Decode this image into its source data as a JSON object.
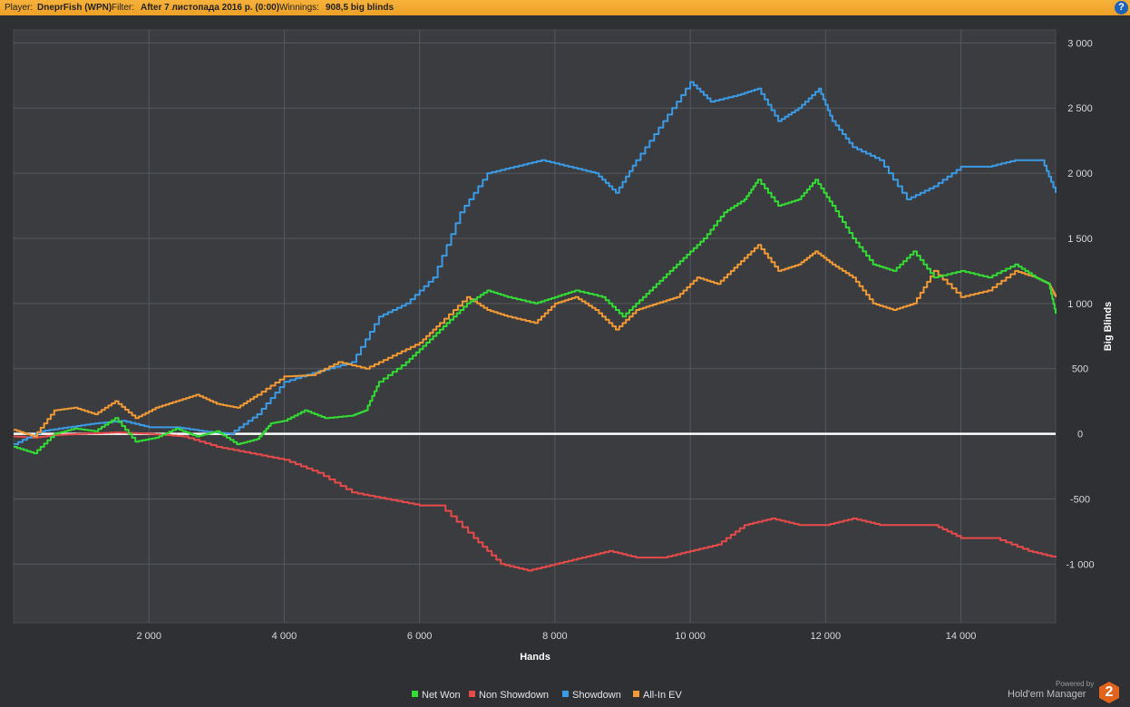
{
  "header": {
    "player_label": "Player:",
    "player_value": "DneprFish (WPN)",
    "filter_label": "Filter:",
    "filter_value": "After 7 листопада 2016 р. (0:00)",
    "winnings_label": "Winnings:",
    "winnings_value": "908,5 big blinds",
    "help_glyph": "?"
  },
  "footer": {
    "powered_by": "Powered by",
    "brand": "Hold'em Manager",
    "brand_version": "2"
  },
  "chart_data": {
    "type": "line",
    "xlabel": "Hands",
    "ylabel": "Big Blinds",
    "xlim": [
      0,
      15400
    ],
    "ylim": [
      -1450,
      3100
    ],
    "x_ticks": [
      2000,
      4000,
      6000,
      8000,
      10000,
      12000,
      14000
    ],
    "x_tick_labels": [
      "2 000",
      "4 000",
      "6 000",
      "8 000",
      "10 000",
      "12 000",
      "14 000"
    ],
    "y_ticks": [
      3000,
      2500,
      2000,
      1500,
      1000,
      500,
      0,
      -500,
      -1000
    ],
    "y_tick_labels": [
      "3 000",
      "2 500",
      "2 000",
      "1 500",
      "1 000",
      "500",
      "0",
      "-500",
      "-1 000"
    ],
    "grid": true,
    "legend_position": "bottom",
    "zero_line_color": "#ffffff",
    "series": [
      {
        "name": "Net Won",
        "color": "#33dd33",
        "x": [
          0,
          300,
          600,
          900,
          1200,
          1500,
          1800,
          2100,
          2400,
          2700,
          3000,
          3300,
          3600,
          3800,
          4000,
          4300,
          4600,
          5000,
          5200,
          5400,
          5800,
          6100,
          6400,
          6700,
          7000,
          7300,
          7700,
          8000,
          8300,
          8700,
          9000,
          9300,
          9600,
          9900,
          10200,
          10500,
          10800,
          11000,
          11300,
          11600,
          11850,
          12100,
          12400,
          12700,
          13000,
          13300,
          13600,
          14000,
          14400,
          14800,
          15100,
          15300,
          15400
        ],
        "y": [
          -100,
          -150,
          0,
          40,
          20,
          120,
          -60,
          -30,
          40,
          -20,
          20,
          -80,
          -40,
          80,
          100,
          180,
          120,
          140,
          180,
          400,
          550,
          700,
          850,
          1000,
          1100,
          1050,
          1000,
          1050,
          1100,
          1050,
          900,
          1050,
          1200,
          1350,
          1500,
          1700,
          1800,
          1950,
          1750,
          1800,
          1950,
          1750,
          1500,
          1300,
          1250,
          1400,
          1200,
          1250,
          1200,
          1300,
          1200,
          1150,
          920
        ]
      },
      {
        "name": "Non Showdown",
        "color": "#e84a4a",
        "x": [
          0,
          300,
          600,
          1000,
          1500,
          2000,
          2500,
          3000,
          3500,
          4000,
          4500,
          5000,
          5500,
          6000,
          6300,
          6800,
          7200,
          7600,
          8000,
          8400,
          8800,
          9200,
          9600,
          10000,
          10400,
          10800,
          11200,
          11600,
          12000,
          12400,
          12800,
          13200,
          13600,
          14000,
          14500,
          15000,
          15400
        ],
        "y": [
          -20,
          -30,
          -10,
          0,
          10,
          0,
          -20,
          -100,
          -150,
          -200,
          -300,
          -450,
          -500,
          -550,
          -550,
          -800,
          -1000,
          -1050,
          -1000,
          -950,
          -900,
          -950,
          -950,
          -900,
          -850,
          -700,
          -650,
          -700,
          -700,
          -650,
          -700,
          -700,
          -700,
          -800,
          -800,
          -900,
          -950
        ]
      },
      {
        "name": "Showdown",
        "color": "#3b9be6",
        "x": [
          0,
          400,
          800,
          1200,
          1600,
          2000,
          2400,
          2800,
          3200,
          3600,
          4000,
          4500,
          5000,
          5400,
          5800,
          6200,
          6600,
          7000,
          7400,
          7800,
          8200,
          8600,
          8900,
          9200,
          9600,
          10000,
          10300,
          10700,
          11000,
          11300,
          11600,
          11900,
          12100,
          12400,
          12800,
          13200,
          13600,
          14000,
          14400,
          14800,
          15200,
          15400
        ],
        "y": [
          -80,
          20,
          50,
          80,
          100,
          50,
          50,
          20,
          0,
          150,
          400,
          480,
          550,
          900,
          1000,
          1200,
          1700,
          2000,
          2050,
          2100,
          2050,
          2000,
          1850,
          2100,
          2400,
          2700,
          2550,
          2600,
          2650,
          2400,
          2500,
          2650,
          2400,
          2200,
          2100,
          1800,
          1900,
          2050,
          2050,
          2100,
          2100,
          1850
        ]
      },
      {
        "name": "All-In EV",
        "color": "#f39a34",
        "x": [
          0,
          300,
          600,
          900,
          1200,
          1500,
          1800,
          2100,
          2400,
          2700,
          3000,
          3300,
          3600,
          4000,
          4400,
          4800,
          5200,
          5600,
          6000,
          6300,
          6700,
          7000,
          7300,
          7700,
          8000,
          8300,
          8600,
          8900,
          9200,
          9500,
          9800,
          10100,
          10400,
          10700,
          11000,
          11300,
          11600,
          11850,
          12100,
          12400,
          12700,
          13000,
          13300,
          13600,
          14000,
          14400,
          14800,
          15100,
          15300,
          15400
        ],
        "y": [
          30,
          -20,
          180,
          200,
          150,
          250,
          120,
          200,
          250,
          300,
          230,
          200,
          300,
          440,
          450,
          550,
          500,
          600,
          700,
          850,
          1050,
          950,
          900,
          850,
          1000,
          1050,
          950,
          800,
          950,
          1000,
          1050,
          1200,
          1150,
          1300,
          1450,
          1250,
          1300,
          1400,
          1300,
          1200,
          1000,
          950,
          1000,
          1250,
          1050,
          1100,
          1250,
          1200,
          1150,
          1050
        ]
      }
    ]
  }
}
